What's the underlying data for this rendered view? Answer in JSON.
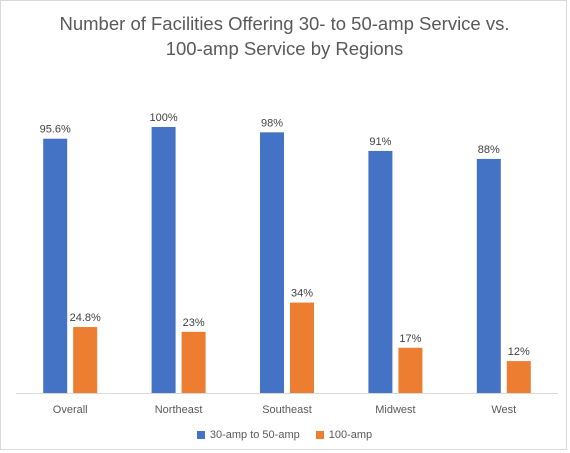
{
  "chart_data": {
    "type": "bar",
    "title_lines": [
      "Number of Facilities Offering 30- to 50-amp Service vs.",
      "100-amp Service by Regions"
    ],
    "categories": [
      "Overall",
      "Northeast",
      "Southeast",
      "Midwest",
      "West"
    ],
    "series": [
      {
        "name": "30-amp to 50-amp",
        "color": "#4472C4",
        "values": [
          95.6,
          100,
          98,
          91,
          88
        ],
        "labels": [
          "95.6%",
          "100%",
          "98%",
          "91%",
          "88%"
        ]
      },
      {
        "name": "100-amp",
        "color": "#ED7D31",
        "values": [
          24.8,
          23,
          34,
          17,
          12
        ],
        "labels": [
          "24.8%",
          "23%",
          "34%",
          "17%",
          "12%"
        ]
      }
    ],
    "ylim": [
      0,
      100
    ],
    "grid": false,
    "legend_position": "bottom"
  }
}
